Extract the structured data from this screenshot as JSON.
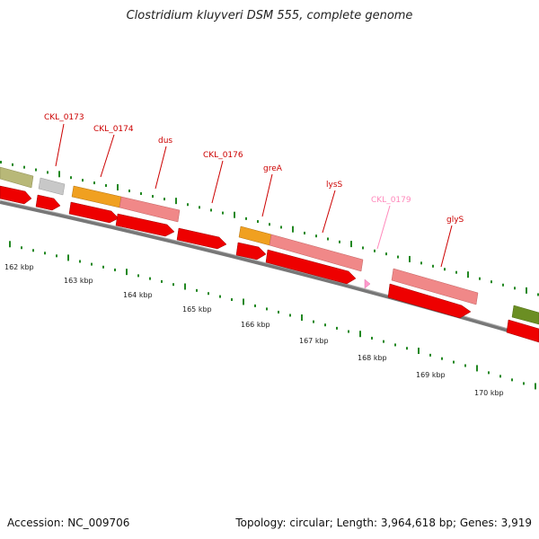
{
  "title": "Clostridium kluyveri DSM 555, complete genome",
  "footer": {
    "accession": "Accession: NC_009706",
    "summary": "Topology: circular; Length: 3,964,618 bp; Genes: 3,919"
  },
  "colors": {
    "gene_label": "#cc0000",
    "faint_label": "#ff88bb",
    "cds": "#ee0000",
    "tick": "#228822",
    "backbone": "#777777"
  },
  "scale_labels": [
    "162 kbp",
    "163 kbp",
    "164 kbp",
    "165 kbp",
    "166 kbp",
    "167 kbp",
    "168 kbp",
    "169 kbp",
    "170 kbp"
  ],
  "gene_labels": [
    {
      "text": "CKL_0173",
      "style": "normal"
    },
    {
      "text": "CKL_0174",
      "style": "normal"
    },
    {
      "text": "dus",
      "style": "normal"
    },
    {
      "text": "CKL_0176",
      "style": "normal"
    },
    {
      "text": "greA",
      "style": "normal"
    },
    {
      "text": "lysS",
      "style": "normal"
    },
    {
      "text": "CKL_0179",
      "style": "faint"
    },
    {
      "text": "glyS",
      "style": "normal"
    }
  ],
  "feature_colors": [
    "#b8b878",
    "#c8c8c8",
    "#f0a020",
    "#f08888",
    "#f0a020",
    "#f08888",
    "#f08888",
    "#6b8e23"
  ]
}
